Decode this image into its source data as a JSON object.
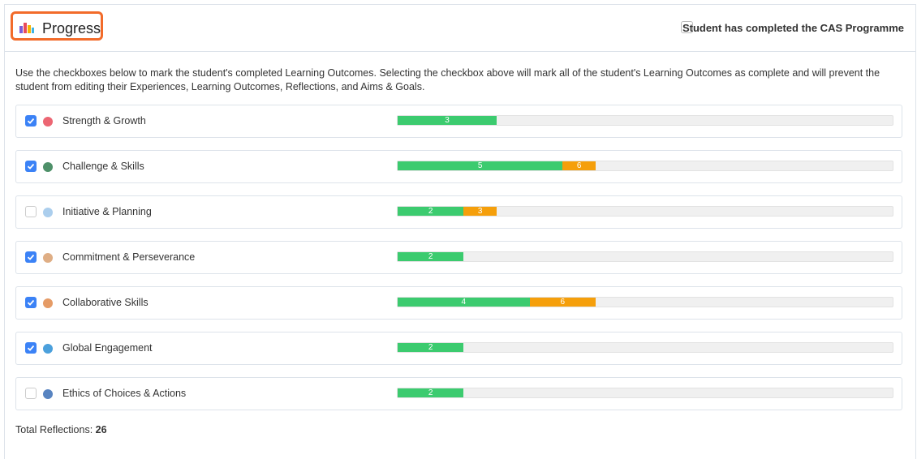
{
  "header": {
    "title": "Progress",
    "cas_label": "Student has completed the CAS Programme",
    "cas_checked": false
  },
  "description": "Use the checkboxes below to mark the student's completed Learning Outcomes. Selecting the checkbox above will mark all of the student's Learning Outcomes as complete and will prevent the student from editing their Experiences, Learning Outcomes, Reflections, and Aims & Goals.",
  "progress": {
    "xlim": [
      0,
      15
    ],
    "completed_color": "#3ccb6f",
    "total_color": "#f59f0b",
    "rows": [
      {
        "label": "Strength & Growth",
        "checked": true,
        "completed": 3,
        "total": null
      },
      {
        "label": "Challenge & Skills",
        "checked": true,
        "completed": 5,
        "total": 6
      },
      {
        "label": "Initiative & Planning",
        "checked": false,
        "completed": 2,
        "total": 3
      },
      {
        "label": "Commitment & Perseverance",
        "checked": true,
        "completed": 2,
        "total": null
      },
      {
        "label": "Collaborative Skills",
        "checked": true,
        "completed": 4,
        "total": 6
      },
      {
        "label": "Global Engagement",
        "checked": true,
        "completed": 2,
        "total": null
      },
      {
        "label": "Ethics of Choices & Actions",
        "checked": false,
        "completed": 2,
        "total": null
      }
    ]
  },
  "footer": {
    "label": "Total Reflections:",
    "value": 26
  }
}
